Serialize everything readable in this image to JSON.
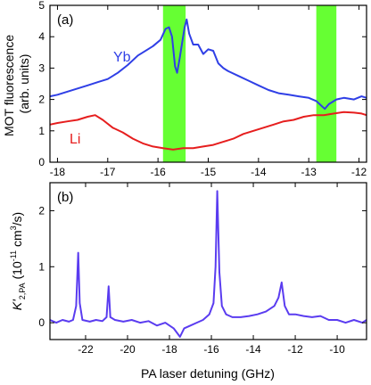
{
  "chart_data": [
    {
      "panel_tag": "(a)",
      "type": "line",
      "ylabel": "MOT fluorescence\n(arb. units)",
      "xlim": [
        -18.15,
        -11.85
      ],
      "ylim": [
        0,
        5
      ],
      "x_ticks": [
        -18,
        -17,
        -16,
        -15,
        -14,
        -13,
        -12
      ],
      "x_tick_labels": [
        "-18",
        "-17",
        "-16",
        "-15",
        "-14",
        "-13",
        "-12"
      ],
      "y_ticks": [
        0,
        1,
        2,
        3,
        4,
        5
      ],
      "y_tick_labels": [
        "0",
        "1",
        "2",
        "3",
        "4",
        "5"
      ],
      "highlight_bands": [
        {
          "x0": -15.9,
          "x1": -15.45,
          "color": "#66ff33"
        },
        {
          "x0": -12.85,
          "x1": -12.45,
          "color": "#66ff33"
        }
      ],
      "series": [
        {
          "name": "Yb",
          "color": "#2f3fe6",
          "points": [
            [
              -18.15,
              2.1
            ],
            [
              -18.0,
              2.15
            ],
            [
              -17.8,
              2.25
            ],
            [
              -17.6,
              2.35
            ],
            [
              -17.4,
              2.45
            ],
            [
              -17.2,
              2.55
            ],
            [
              -17.0,
              2.65
            ],
            [
              -16.8,
              2.85
            ],
            [
              -16.6,
              3.1
            ],
            [
              -16.4,
              3.4
            ],
            [
              -16.2,
              3.6
            ],
            [
              -16.1,
              3.7
            ],
            [
              -15.95,
              3.9
            ],
            [
              -15.85,
              4.25
            ],
            [
              -15.78,
              4.3
            ],
            [
              -15.72,
              4.0
            ],
            [
              -15.66,
              3.05
            ],
            [
              -15.62,
              2.85
            ],
            [
              -15.57,
              3.3
            ],
            [
              -15.52,
              3.8
            ],
            [
              -15.47,
              4.3
            ],
            [
              -15.43,
              4.55
            ],
            [
              -15.38,
              4.1
            ],
            [
              -15.3,
              3.75
            ],
            [
              -15.2,
              3.75
            ],
            [
              -15.1,
              3.45
            ],
            [
              -15.0,
              3.6
            ],
            [
              -14.9,
              3.55
            ],
            [
              -14.8,
              3.15
            ],
            [
              -14.7,
              3.0
            ],
            [
              -14.6,
              2.9
            ],
            [
              -14.4,
              2.75
            ],
            [
              -14.2,
              2.6
            ],
            [
              -14.0,
              2.45
            ],
            [
              -13.8,
              2.3
            ],
            [
              -13.6,
              2.2
            ],
            [
              -13.4,
              2.15
            ],
            [
              -13.2,
              2.1
            ],
            [
              -13.0,
              2.05
            ],
            [
              -12.85,
              1.95
            ],
            [
              -12.75,
              1.8
            ],
            [
              -12.68,
              1.7
            ],
            [
              -12.6,
              1.85
            ],
            [
              -12.45,
              2.0
            ],
            [
              -12.3,
              2.05
            ],
            [
              -12.1,
              2.0
            ],
            [
              -11.95,
              2.1
            ],
            [
              -11.85,
              2.05
            ]
          ]
        },
        {
          "name": "Li",
          "color": "#e61e1e",
          "points": [
            [
              -18.15,
              1.2
            ],
            [
              -18.0,
              1.25
            ],
            [
              -17.8,
              1.3
            ],
            [
              -17.6,
              1.35
            ],
            [
              -17.4,
              1.45
            ],
            [
              -17.25,
              1.5
            ],
            [
              -17.1,
              1.35
            ],
            [
              -16.9,
              1.1
            ],
            [
              -16.7,
              0.95
            ],
            [
              -16.5,
              0.75
            ],
            [
              -16.3,
              0.6
            ],
            [
              -16.1,
              0.5
            ],
            [
              -15.9,
              0.45
            ],
            [
              -15.7,
              0.4
            ],
            [
              -15.5,
              0.45
            ],
            [
              -15.3,
              0.45
            ],
            [
              -15.1,
              0.5
            ],
            [
              -14.9,
              0.55
            ],
            [
              -14.7,
              0.65
            ],
            [
              -14.5,
              0.75
            ],
            [
              -14.3,
              0.9
            ],
            [
              -14.1,
              1.0
            ],
            [
              -13.9,
              1.1
            ],
            [
              -13.7,
              1.2
            ],
            [
              -13.5,
              1.3
            ],
            [
              -13.3,
              1.35
            ],
            [
              -13.1,
              1.45
            ],
            [
              -12.9,
              1.5
            ],
            [
              -12.7,
              1.5
            ],
            [
              -12.5,
              1.55
            ],
            [
              -12.3,
              1.6
            ],
            [
              -12.1,
              1.58
            ],
            [
              -11.95,
              1.55
            ],
            [
              -11.85,
              1.5
            ]
          ]
        }
      ]
    },
    {
      "panel_tag": "(b)",
      "type": "line",
      "xlabel": "PA laser detuning (GHz)",
      "ylabel": "K'2,PA (10-11 cm3/s)",
      "ylabel_parts": {
        "main": "K'",
        "sub": "2,PA",
        "unit_open": " (10",
        "exp1": "-11",
        "unit_mid": " cm",
        "exp2": "3",
        "unit_close": "/s)"
      },
      "xlim": [
        -23.7,
        -8.6
      ],
      "ylim": [
        -0.3,
        2.5
      ],
      "x_ticks": [
        -22,
        -20,
        -18,
        -16,
        -14,
        -12,
        -10
      ],
      "x_tick_labels": [
        "-22",
        "-20",
        "-18",
        "-16",
        "-14",
        "-12",
        "-10"
      ],
      "y_ticks": [
        0,
        1,
        2
      ],
      "y_tick_labels": [
        "0",
        "1",
        "2"
      ],
      "series": [
        {
          "color": "#5a3cf0",
          "points": [
            [
              -23.7,
              0.05
            ],
            [
              -23.4,
              0.0
            ],
            [
              -23.1,
              0.05
            ],
            [
              -22.8,
              0.02
            ],
            [
              -22.6,
              0.05
            ],
            [
              -22.45,
              0.3
            ],
            [
              -22.35,
              1.25
            ],
            [
              -22.28,
              0.35
            ],
            [
              -22.15,
              0.05
            ],
            [
              -21.8,
              0.02
            ],
            [
              -21.5,
              0.05
            ],
            [
              -21.2,
              0.03
            ],
            [
              -21.0,
              0.1
            ],
            [
              -20.9,
              0.65
            ],
            [
              -20.82,
              0.1
            ],
            [
              -20.6,
              0.05
            ],
            [
              -20.2,
              0.02
            ],
            [
              -19.8,
              0.05
            ],
            [
              -19.4,
              0.0
            ],
            [
              -19.0,
              0.03
            ],
            [
              -18.6,
              -0.05
            ],
            [
              -18.2,
              0.0
            ],
            [
              -17.8,
              -0.1
            ],
            [
              -17.5,
              -0.25
            ],
            [
              -17.3,
              -0.1
            ],
            [
              -17.0,
              -0.05
            ],
            [
              -16.7,
              0.0
            ],
            [
              -16.4,
              0.05
            ],
            [
              -16.1,
              0.15
            ],
            [
              -15.9,
              0.35
            ],
            [
              -15.8,
              1.0
            ],
            [
              -15.72,
              2.35
            ],
            [
              -15.62,
              0.9
            ],
            [
              -15.5,
              0.3
            ],
            [
              -15.3,
              0.15
            ],
            [
              -15.0,
              0.1
            ],
            [
              -14.6,
              0.1
            ],
            [
              -14.2,
              0.12
            ],
            [
              -13.8,
              0.15
            ],
            [
              -13.4,
              0.2
            ],
            [
              -13.0,
              0.3
            ],
            [
              -12.8,
              0.45
            ],
            [
              -12.65,
              0.72
            ],
            [
              -12.5,
              0.3
            ],
            [
              -12.3,
              0.15
            ],
            [
              -12.0,
              0.15
            ],
            [
              -11.6,
              0.12
            ],
            [
              -11.2,
              0.1
            ],
            [
              -10.8,
              0.12
            ],
            [
              -10.4,
              0.05
            ],
            [
              -10.0,
              0.05
            ],
            [
              -9.6,
              0.0
            ],
            [
              -9.2,
              0.05
            ],
            [
              -8.8,
              0.0
            ],
            [
              -8.6,
              0.05
            ]
          ]
        }
      ]
    }
  ]
}
